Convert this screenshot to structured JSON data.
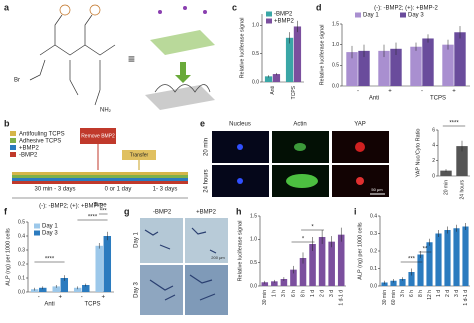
{
  "figure": {
    "a": {
      "panel": "a",
      "equiv": "≡",
      "br": "Br",
      "nh2": "NH₂"
    },
    "b": {
      "panel": "b",
      "legend": [
        "Antifouling TCPS",
        "Adhesive TCPS",
        "+BMP2",
        "-BMP2"
      ],
      "remove": "Remove BMP2",
      "transfer": "Transfer",
      "phases": [
        "30 min - 3 days",
        "0 or 1 day",
        "1- 3 days"
      ],
      "axis": "Time"
    },
    "e": {
      "panel": "e",
      "columns": [
        "Nucleus",
        "Actin",
        "YAP"
      ],
      "rows": [
        "20 min",
        "24 hours"
      ],
      "scale": "50 μm"
    },
    "g": {
      "panel": "g",
      "columns": [
        "-BMP2",
        "+BMP2"
      ],
      "rows": [
        "Day 1",
        "Day 3"
      ],
      "scale": "200 μm"
    }
  },
  "chart_data": [
    {
      "type": "bar",
      "panel": "c",
      "ylabel": "Relative luciferase signal",
      "ylim": [
        0,
        1.2
      ],
      "yticks": [
        {
          "value": 0,
          "label": "0.0"
        },
        0.5,
        {
          "value": 1,
          "label": "1.0"
        }
      ],
      "categories": [
        "Anti",
        "TCPS"
      ],
      "series": [
        {
          "name": "-BMP2",
          "color": "#3aa6a6",
          "values": [
            0.1,
            0.78
          ],
          "errors": [
            0.02,
            0.1
          ]
        },
        {
          "name": "+BMP2",
          "color": "#7b4f9e",
          "values": [
            0.14,
            0.98
          ],
          "errors": [
            0.02,
            0.1
          ]
        }
      ]
    },
    {
      "type": "bar",
      "panel": "d",
      "title": "(-): -BMP2; (+): +BMP-2",
      "ylabel": "Relative luciferase signal",
      "ylim": [
        0,
        1.5
      ],
      "yticks": [
        {
          "value": 0,
          "label": "0.0"
        },
        0.5,
        {
          "value": 1,
          "label": "1.0"
        },
        1.5
      ],
      "categories": [
        "-",
        "+",
        "-",
        "+"
      ],
      "groups": [
        "Anti",
        "TCPS"
      ],
      "series": [
        {
          "name": "Day 1",
          "color": "#a98fd0",
          "values": [
            0.82,
            0.85,
            0.95,
            1.0
          ],
          "errors": [
            0.15,
            0.15,
            0.1,
            0.12
          ]
        },
        {
          "name": "Day 3",
          "color": "#6a4c9c",
          "values": [
            0.85,
            0.9,
            1.15,
            1.3
          ],
          "errors": [
            0.15,
            0.15,
            0.1,
            0.15
          ]
        }
      ]
    },
    {
      "type": "bar",
      "panel": "e2",
      "ylabel": "YAP Nuc/Cyto Ratio",
      "ylim": [
        0,
        6
      ],
      "yticks": [
        0,
        2,
        4,
        6
      ],
      "categories": [
        "20 min",
        "24 hours"
      ],
      "values": [
        0.7,
        3.9
      ],
      "errors": [
        0.2,
        0.7
      ],
      "color": "#555555",
      "annotations": [
        "****"
      ]
    },
    {
      "type": "bar",
      "panel": "f",
      "title": "(-): -BMP2; (+): +BMP-2",
      "ylabel": "ALP (ng) per 1000 cells",
      "ylim": [
        0,
        0.5
      ],
      "yticks": [
        {
          "value": 0,
          "label": "0.0"
        },
        0.1,
        0.2,
        0.3,
        0.4,
        0.5
      ],
      "categories": [
        "-",
        "+",
        "-",
        "+"
      ],
      "groups": [
        "Anti",
        "TCPS"
      ],
      "series": [
        {
          "name": "Day 1",
          "color": "#9cc8ea",
          "values": [
            0.02,
            0.04,
            0.03,
            0.33
          ],
          "errors": [
            0.01,
            0.01,
            0.01,
            0.02
          ]
        },
        {
          "name": "Day 3",
          "color": "#2b7bbf",
          "values": [
            0.03,
            0.1,
            0.05,
            0.4
          ],
          "errors": [
            0.01,
            0.02,
            0.01,
            0.03
          ]
        }
      ],
      "annotations": [
        "****",
        "****",
        "***"
      ]
    },
    {
      "type": "bar",
      "panel": "h",
      "ylabel": "Relative luciferase signal",
      "ylim": [
        0,
        1.5
      ],
      "yticks": [
        {
          "value": 0,
          "label": "0.0"
        },
        0.5,
        {
          "value": 1,
          "label": "1.0"
        },
        1.5
      ],
      "categories": [
        "30 min",
        "1 h",
        "3 h",
        "6 h",
        "8 h",
        "1 d",
        "2 d",
        "3 d",
        "1 d-1 d"
      ],
      "values": [
        0.08,
        0.1,
        0.15,
        0.35,
        0.6,
        0.9,
        1.05,
        0.95,
        1.1
      ],
      "errors": [
        0.03,
        0.03,
        0.04,
        0.08,
        0.12,
        0.15,
        0.15,
        0.12,
        0.15
      ],
      "color": "#7b4f9e",
      "annotations": [
        "*",
        "*"
      ]
    },
    {
      "type": "bar",
      "panel": "i",
      "ylabel": "ALP (ng) per 1000 cells",
      "ylim": [
        0,
        0.4
      ],
      "yticks": [
        {
          "value": 0,
          "label": "0.0"
        },
        0.1,
        0.2,
        0.3,
        0.4
      ],
      "categories": [
        "30 min",
        "60 min",
        "3 h",
        "6 h",
        "8 h",
        "12 h",
        "1 d",
        "2 d",
        "3 d",
        "1 d-1 d"
      ],
      "values": [
        0.02,
        0.03,
        0.04,
        0.08,
        0.18,
        0.25,
        0.3,
        0.32,
        0.33,
        0.34
      ],
      "errors": [
        0.01,
        0.01,
        0.01,
        0.02,
        0.02,
        0.02,
        0.02,
        0.02,
        0.02,
        0.02
      ],
      "color": "#2b7bbf",
      "annotations": [
        "***",
        "**"
      ]
    }
  ]
}
